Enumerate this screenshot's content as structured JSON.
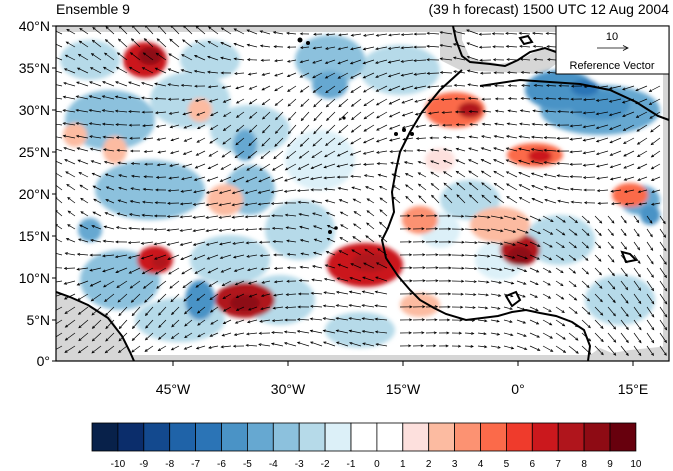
{
  "header": {
    "left_title": "Ensemble 9",
    "right_title": "(39 h forecast) 1500 UTC 12 Aug 2004"
  },
  "map": {
    "lat_labels": [
      "40°N",
      "35°N",
      "30°N",
      "25°N",
      "20°N",
      "15°N",
      "10°N",
      "5°N",
      "0°"
    ],
    "lon_labels": [
      "45°W",
      "30°W",
      "15°W",
      "0°",
      "15°E"
    ],
    "reference_vector": {
      "value": "10",
      "label": "Reference Vector"
    },
    "land_color": "#d6d6d6",
    "coastline_color": "#000000",
    "vector_color": "#000000"
  },
  "colorbar": {
    "labels": [
      "-10",
      "-9",
      "-8",
      "-7",
      "-6",
      "-5",
      "-4",
      "-3",
      "-2",
      "-1",
      "0",
      "1",
      "2",
      "3",
      "4",
      "5",
      "6",
      "7",
      "8",
      "9",
      "10"
    ],
    "colors": [
      "#08214a",
      "#0b2d6b",
      "#13498e",
      "#1f63a8",
      "#2b74b6",
      "#4a93c6",
      "#66a8d1",
      "#8cc1dd",
      "#b6dae9",
      "#dcf0f8",
      "#ffffff",
      "#ffffff",
      "#fde0dd",
      "#fcbba1",
      "#fc9272",
      "#fb6a4a",
      "#ef3b2c",
      "#cb181d",
      "#b0151c",
      "#8e0b14",
      "#67000d"
    ]
  }
}
